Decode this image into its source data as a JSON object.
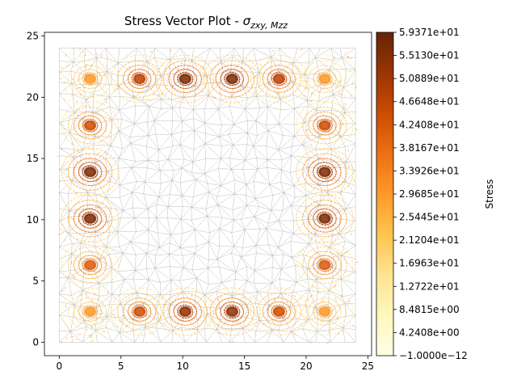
{
  "chart_data": {
    "type": "vector-field",
    "title": "Stress Vector Plot - ",
    "title_math": "σ",
    "title_subscript": "zxy, Mzz",
    "xlim": [
      -1.2,
      25.3
    ],
    "ylim": [
      -1.1,
      25.3
    ],
    "x_ticks": [
      "0",
      "5",
      "10",
      "15",
      "20",
      "25"
    ],
    "x_tick_values": [
      0,
      5,
      10,
      15,
      20,
      25
    ],
    "y_ticks": [
      "0",
      "5",
      "10",
      "15",
      "20",
      "25"
    ],
    "y_tick_values": [
      0,
      5,
      10,
      15,
      20,
      25
    ],
    "mesh_extent": {
      "x": [
        0,
        24
      ],
      "y": [
        0,
        24
      ]
    },
    "mesh_color": "#9e9e9e",
    "vortex_centers": [
      {
        "x": 2.5,
        "y": 2.5,
        "strength": 0.5
      },
      {
        "x": 6.5,
        "y": 2.5,
        "strength": 0.75
      },
      {
        "x": 10.2,
        "y": 2.5,
        "strength": 0.9
      },
      {
        "x": 14.0,
        "y": 2.5,
        "strength": 0.9
      },
      {
        "x": 17.8,
        "y": 2.5,
        "strength": 0.75
      },
      {
        "x": 21.5,
        "y": 2.5,
        "strength": 0.5
      },
      {
        "x": 2.5,
        "y": 21.5,
        "strength": 0.5
      },
      {
        "x": 6.5,
        "y": 21.5,
        "strength": 0.8
      },
      {
        "x": 10.2,
        "y": 21.5,
        "strength": 0.95
      },
      {
        "x": 14.0,
        "y": 21.5,
        "strength": 0.95
      },
      {
        "x": 17.8,
        "y": 21.5,
        "strength": 0.8
      },
      {
        "x": 21.5,
        "y": 21.5,
        "strength": 0.5
      },
      {
        "x": 2.5,
        "y": 6.3,
        "strength": 0.7
      },
      {
        "x": 2.5,
        "y": 10.1,
        "strength": 0.95
      },
      {
        "x": 2.5,
        "y": 13.9,
        "strength": 0.95
      },
      {
        "x": 2.5,
        "y": 17.7,
        "strength": 0.75
      },
      {
        "x": 21.5,
        "y": 6.3,
        "strength": 0.7
      },
      {
        "x": 21.5,
        "y": 10.1,
        "strength": 0.95
      },
      {
        "x": 21.5,
        "y": 13.9,
        "strength": 0.95
      },
      {
        "x": 21.5,
        "y": 17.7,
        "strength": 0.75
      }
    ],
    "colorbar": {
      "label": "Stress",
      "min": -1e-12,
      "max": 59.371,
      "ticks": [
        "−1.0000e−12",
        "4.2408e+00",
        "8.4815e+00",
        "1.2722e+01",
        "1.6963e+01",
        "2.1204e+01",
        "2.5445e+01",
        "2.9685e+01",
        "3.3926e+01",
        "3.8167e+01",
        "4.2408e+01",
        "4.6648e+01",
        "5.0889e+01",
        "5.5130e+01",
        "5.9371e+01"
      ],
      "colors": [
        "#ffffe5",
        "#fff7bc",
        "#fee391",
        "#fec44f",
        "#fe9929",
        "#ec7014",
        "#cc4c02",
        "#993404",
        "#662506"
      ]
    }
  }
}
